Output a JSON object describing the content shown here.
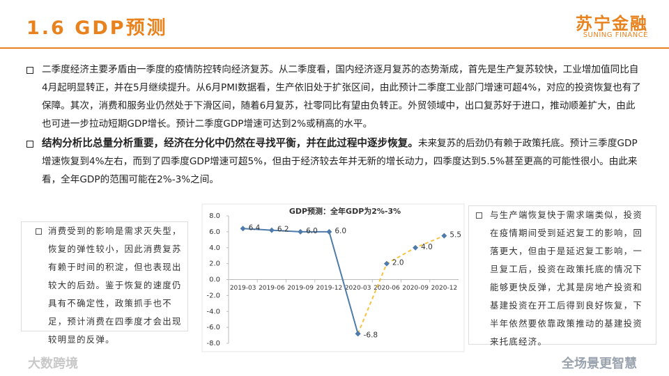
{
  "header": {
    "title": "1.6 GDP预测",
    "logo": "苏宁金融",
    "logo_sub": "SUNING FINANCE"
  },
  "bullets": [
    {
      "text": "二季度经济主要矛盾由一季度的疫情防控转向经济复苏。从二季度看，国内经济逐月复苏的态势渐成，首先是生产复苏较快，工业增加值同比自4月起明显转正，并在5月继续提升。从6月PMI数据看，生产依旧处于扩张区间，由此预计二季度工业部门增速可超4%，对应的投资恢复也有了保障。其次，消费和服务业仍然处于下滑区间，随着6月复苏，社零同比有望由负转正。外贸领域中，出口复苏好于进口，推动顺差扩大，由此也可进一步拉动短期GDP增长。预计二季度GDP增速可达到2%或稍高的水平。"
    },
    {
      "bold": "结构分析比总量分析重要，经济在分化中仍然在寻找平衡，并在此过程中逐步恢复。",
      "text": "未来复苏的后劲仍有赖于政策托底。预计三季度GDP增速恢复到4%左右，而到了四季度GDP增速可超5%，但由于经济较去年并无新的增长动力，四季度达到5.5%甚至更高的可能性很小。由此来看，全年GDP的范围可能在2%-3%之间。"
    }
  ],
  "left_note": "消费受到的影响是需求灭失型，恢复的弹性较小，因此消费复苏有赖于时间的积淀，但也表现出较大的后劲。鉴于恢复的速度仍具有不确定性，政策抓手也不足，预计消费在四季度才会出现较明显的反弹。",
  "right_note": "与生产端恢复快于需求端类似，投资在疫情期间受到延迟复工的影响，回落更大，但由于是延迟复工影响，一旦复工后，投资在政策托底的情况下能够更快反弹，尤其是房地产投资和基建投资在开工后得到良好恢复，下半年依然要依靠政策推动的基建投资来托底经济。",
  "watermarks": [
    "大数跨境",
    "全场景更智慧"
  ],
  "chart_data": {
    "type": "line",
    "title": "GDP预测：全年GDP为2%-3%",
    "categories": [
      "2019-03",
      "2019-06",
      "2019-09",
      "2019-12",
      "2020-03",
      "2020-06",
      "2020-09",
      "2020-12"
    ],
    "series": [
      {
        "color": "#4f7bab",
        "dashed": false,
        "values": [
          6.4,
          6.2,
          6.0,
          6.0,
          -6.8,
          null,
          null,
          null
        ],
        "value_labels": [
          "6.4",
          "6.2",
          "6.0",
          "6.0",
          "-6.8",
          null,
          null,
          null
        ]
      },
      {
        "color": "#f5c242",
        "dashed": true,
        "values": [
          null,
          null,
          null,
          null,
          -6.8,
          2.0,
          4.0,
          5.5
        ],
        "value_labels": [
          null,
          null,
          null,
          null,
          null,
          "2.0",
          "4.0",
          "5.5"
        ]
      }
    ],
    "marker_color": "#4f7bab",
    "ylim": [
      -8,
      8
    ],
    "yticks": [
      {
        "value": -8,
        "label": "-8.0"
      },
      {
        "value": -6,
        "label": "-6.0"
      },
      {
        "value": -4,
        "label": "-4.0"
      },
      {
        "value": -2,
        "label": "-2.0"
      },
      {
        "value": 0,
        "label": "0.0"
      },
      {
        "value": 2,
        "label": "2.0"
      },
      {
        "value": 4,
        "label": "4.0"
      },
      {
        "value": 6,
        "label": "6.0"
      },
      {
        "value": 8,
        "label": "8.0"
      }
    ]
  }
}
